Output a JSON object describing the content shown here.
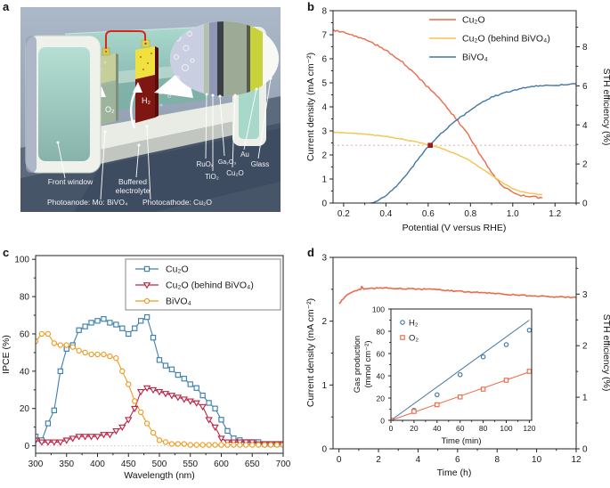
{
  "panels": {
    "a": "a",
    "b": "b",
    "c": "c",
    "d": "d"
  },
  "panel_a": {
    "labels": {
      "front_window": "Front window",
      "buffered_line1": "Buffered",
      "buffered_line2": "electrolyte",
      "photoanode": "Photoanode: Mo: BiVO₄",
      "photocathode": "Photocathode: Cu₂O",
      "o2": "O₂",
      "h2": "H₂"
    },
    "layers": [
      "RuOₓ",
      "TiO₂",
      "Ga₂O₃",
      "Cu₂O",
      "Au",
      "Glass"
    ]
  },
  "colors": {
    "cu2o_orange": "#EC6A4A",
    "cu2o_behind_yellow": "#F5C44B",
    "bivo4_blue": "#4077A4",
    "ipce_crimson": "#C02344",
    "ipce_orange": "#F09A1E",
    "operating_point_red": "#9E1B1E"
  },
  "chart_data": [
    {
      "id": "b",
      "type": "line",
      "xlabel": "Potential (V versus RHE)",
      "ylabel": "Current density (mA cm⁻²)",
      "ylabel_right": "STH efficiency (%)",
      "xlim": [
        0.15,
        1.3
      ],
      "ylim": [
        0,
        8
      ],
      "xticks": [
        0.2,
        0.4,
        0.6,
        0.8,
        1.0,
        1.2
      ],
      "xtick_labels": [
        "0.2",
        "0.4",
        "0.6",
        "0.8",
        "1.0",
        "1.2"
      ],
      "yticks": [
        0,
        1,
        2,
        3,
        4,
        5,
        6,
        7,
        8
      ],
      "ytick_labels": [
        "0",
        "1",
        "2",
        "3",
        "4",
        "5",
        "6",
        "7",
        "8"
      ],
      "right_axis": {
        "ticks": [
          0,
          2,
          4,
          6,
          8
        ],
        "tick_labels": [
          "0",
          "2",
          "4",
          "6",
          "8"
        ],
        "mA_per_unit": 0.8125
      },
      "grid": false,
      "legend_position": "upper center-right",
      "annotations": {
        "dashed_hline_mA": 2.4,
        "operating_point": {
          "x": 0.61,
          "y": 2.4,
          "color": "#9E1B1E"
        }
      },
      "series": [
        {
          "name": "Cu₂O",
          "color": "#EC6A4A",
          "x": [
            0.15,
            0.2,
            0.25,
            0.3,
            0.35,
            0.4,
            0.45,
            0.5,
            0.55,
            0.6,
            0.65,
            0.7,
            0.75,
            0.8,
            0.85,
            0.9,
            0.95,
            1.0,
            1.05,
            1.1,
            1.14
          ],
          "y": [
            7.2,
            7.1,
            6.95,
            6.8,
            6.6,
            6.35,
            6.05,
            5.7,
            5.25,
            4.8,
            4.35,
            3.85,
            3.3,
            2.7,
            1.95,
            1.25,
            0.7,
            0.45,
            0.3,
            0.25,
            0.22
          ]
        },
        {
          "name": "Cu₂O (behind BiVO₄)",
          "color": "#F5C44B",
          "x": [
            0.15,
            0.2,
            0.25,
            0.3,
            0.35,
            0.4,
            0.45,
            0.5,
            0.55,
            0.6,
            0.65,
            0.7,
            0.75,
            0.8,
            0.85,
            0.9,
            0.95,
            1.0,
            1.05,
            1.1,
            1.14
          ],
          "y": [
            2.95,
            2.92,
            2.9,
            2.86,
            2.82,
            2.77,
            2.7,
            2.62,
            2.53,
            2.42,
            2.3,
            2.15,
            1.97,
            1.75,
            1.45,
            1.15,
            0.85,
            0.6,
            0.45,
            0.38,
            0.35
          ]
        },
        {
          "name": "BiVO₄",
          "color": "#4077A4",
          "x": [
            0.33,
            0.35,
            0.4,
            0.45,
            0.5,
            0.55,
            0.6,
            0.65,
            0.7,
            0.75,
            0.8,
            0.85,
            0.9,
            0.95,
            1.0,
            1.05,
            1.1,
            1.15,
            1.2,
            1.25,
            1.3
          ],
          "y": [
            0,
            0.05,
            0.3,
            0.7,
            1.2,
            1.8,
            2.35,
            2.8,
            3.2,
            3.55,
            3.85,
            4.15,
            4.4,
            4.55,
            4.68,
            4.78,
            4.85,
            4.88,
            4.9,
            4.92,
            4.95
          ]
        }
      ]
    },
    {
      "id": "c",
      "type": "line",
      "markers": true,
      "xlabel": "Wavelength (nm)",
      "ylabel": "IPCE (%)",
      "xlim": [
        300,
        700
      ],
      "ylim": [
        -4,
        102
      ],
      "xticks": [
        300,
        350,
        400,
        450,
        500,
        550,
        600,
        650,
        700
      ],
      "xtick_labels": [
        "300",
        "350",
        "400",
        "450",
        "500",
        "550",
        "600",
        "650",
        "700"
      ],
      "yticks": [
        0,
        20,
        40,
        60,
        80,
        100
      ],
      "ytick_labels": [
        "0",
        "20",
        "40",
        "60",
        "80",
        "100"
      ],
      "legend_position": "upper center",
      "annotations": {
        "dotted_hline": 0
      },
      "series": [
        {
          "name": "Cu₂O",
          "color": "#3D7FAE",
          "marker": "square",
          "x": [
            300,
            310,
            320,
            330,
            340,
            350,
            360,
            370,
            380,
            390,
            400,
            410,
            420,
            430,
            440,
            450,
            460,
            470,
            480,
            490,
            500,
            510,
            520,
            530,
            540,
            550,
            560,
            570,
            580,
            590,
            600,
            610,
            620,
            630,
            640,
            650,
            660,
            670,
            680,
            690,
            700
          ],
          "y": [
            5,
            3,
            12,
            19,
            40,
            52,
            54,
            62,
            64,
            66,
            67,
            68,
            66,
            65,
            63,
            60,
            63,
            67,
            69,
            58,
            46,
            43,
            41,
            38,
            36,
            33,
            31,
            27,
            23,
            20,
            14,
            8,
            4,
            3,
            2,
            2,
            2,
            1,
            1,
            1,
            1
          ]
        },
        {
          "name": "Cu₂O (behind BiVO₄)",
          "color": "#C02344",
          "marker": "triangle-down",
          "x": [
            300,
            310,
            320,
            330,
            340,
            350,
            360,
            370,
            380,
            390,
            400,
            410,
            420,
            430,
            440,
            450,
            460,
            470,
            480,
            490,
            500,
            510,
            520,
            530,
            540,
            550,
            560,
            570,
            580,
            590,
            600,
            610,
            620,
            630,
            640,
            650,
            660,
            670,
            680,
            690,
            700
          ],
          "y": [
            3,
            2,
            2,
            2,
            2,
            3,
            4,
            5,
            5,
            5,
            5,
            6,
            6,
            8,
            10,
            14,
            20,
            29,
            31,
            30,
            29,
            28,
            27,
            26,
            25,
            24,
            23,
            21,
            14,
            10,
            4,
            2,
            2,
            2,
            2,
            2,
            1,
            1,
            1,
            1,
            1
          ]
        },
        {
          "name": "BiVO₄",
          "color": "#F09A1E",
          "marker": "circle",
          "x": [
            300,
            310,
            320,
            330,
            340,
            350,
            360,
            370,
            380,
            390,
            400,
            410,
            420,
            430,
            440,
            450,
            460,
            470,
            480,
            490,
            500,
            510,
            520,
            530,
            540,
            550,
            560,
            570,
            580,
            590,
            600,
            610,
            620,
            630,
            640,
            650,
            660,
            670,
            680,
            690,
            700
          ],
          "y": [
            56,
            60,
            60,
            55,
            54,
            54,
            53,
            51,
            50,
            49,
            49,
            49,
            48,
            47,
            40,
            33,
            24,
            18,
            12,
            7,
            3,
            2,
            1,
            1,
            1,
            0.5,
            0.5,
            0.5,
            0.5,
            0.5,
            0.5,
            0.5,
            0.5,
            0.5,
            0.5,
            0.5,
            0.5,
            0.5,
            0.5,
            0.5,
            0.5
          ]
        }
      ]
    },
    {
      "id": "d",
      "type": "line",
      "xlabel": "Time (h)",
      "ylabel": "Current density (mA cm⁻²)",
      "ylabel_right": "STH efficiency (%)",
      "xlim": [
        -0.3,
        12
      ],
      "ylim": [
        0,
        3
      ],
      "xticks": [
        0,
        2,
        4,
        6,
        8,
        10,
        12
      ],
      "xtick_labels": [
        "0",
        "2",
        "4",
        "6",
        "8",
        "10",
        "12"
      ],
      "yticks": [
        0,
        1,
        2,
        3
      ],
      "ytick_labels": [
        "0",
        "1",
        "2",
        "3"
      ],
      "right_axis": {
        "ticks": [
          0,
          1,
          2,
          3
        ],
        "tick_labels": [
          "0",
          "1",
          "2",
          "3"
        ],
        "mA_per_unit": 0.808
      },
      "series": [
        {
          "name": "",
          "color": "#EC6A4A",
          "x": [
            0,
            0.15,
            0.3,
            0.5,
            0.7,
            0.9,
            1.1,
            1.15,
            1.25,
            1.5,
            2,
            2.5,
            3,
            3.5,
            4,
            4.5,
            5,
            5.5,
            6,
            6.5,
            7,
            7.5,
            8,
            8.5,
            9,
            9.5,
            10,
            10.5,
            11,
            11.5,
            12
          ],
          "y": [
            2.27,
            2.33,
            2.38,
            2.43,
            2.46,
            2.48,
            2.5,
            2.54,
            2.5,
            2.51,
            2.52,
            2.52,
            2.51,
            2.51,
            2.5,
            2.5,
            2.49,
            2.48,
            2.47,
            2.46,
            2.45,
            2.44,
            2.43,
            2.42,
            2.41,
            2.4,
            2.39,
            2.39,
            2.38,
            2.38,
            2.37
          ]
        }
      ]
    },
    {
      "id": "d_inset",
      "type": "scatter",
      "xlabel": "Time (min)",
      "ylabel_lines": [
        "Gas production",
        "(mmol cm⁻²)"
      ],
      "xlim": [
        0,
        122
      ],
      "ylim": [
        0,
        100
      ],
      "xticks": [
        0,
        20,
        40,
        60,
        80,
        100,
        120
      ],
      "xtick_labels": [
        "0",
        "20",
        "40",
        "60",
        "80",
        "100",
        "120"
      ],
      "yticks": [
        0,
        20,
        40,
        60,
        80,
        100
      ],
      "ytick_labels": [
        "0",
        "20",
        "40",
        "60",
        "80",
        "100"
      ],
      "legend_position": "upper left",
      "series": [
        {
          "name": "H₂",
          "color": "#4077A4",
          "marker": "circle",
          "x": [
            0,
            20,
            40,
            60,
            80,
            100,
            120
          ],
          "y": [
            0,
            9,
            23,
            41,
            57,
            68,
            81
          ],
          "fit_line": {
            "x": [
              0,
              120
            ],
            "y": [
              0,
              90
            ]
          }
        },
        {
          "name": "O₂",
          "color": "#EC6A4A",
          "marker": "square",
          "x": [
            0,
            20,
            40,
            60,
            80,
            100,
            120
          ],
          "y": [
            0,
            8,
            14,
            21,
            28,
            36,
            44
          ],
          "fit_line": {
            "x": [
              0,
              120
            ],
            "y": [
              0,
              43.5
            ]
          }
        }
      ]
    }
  ]
}
